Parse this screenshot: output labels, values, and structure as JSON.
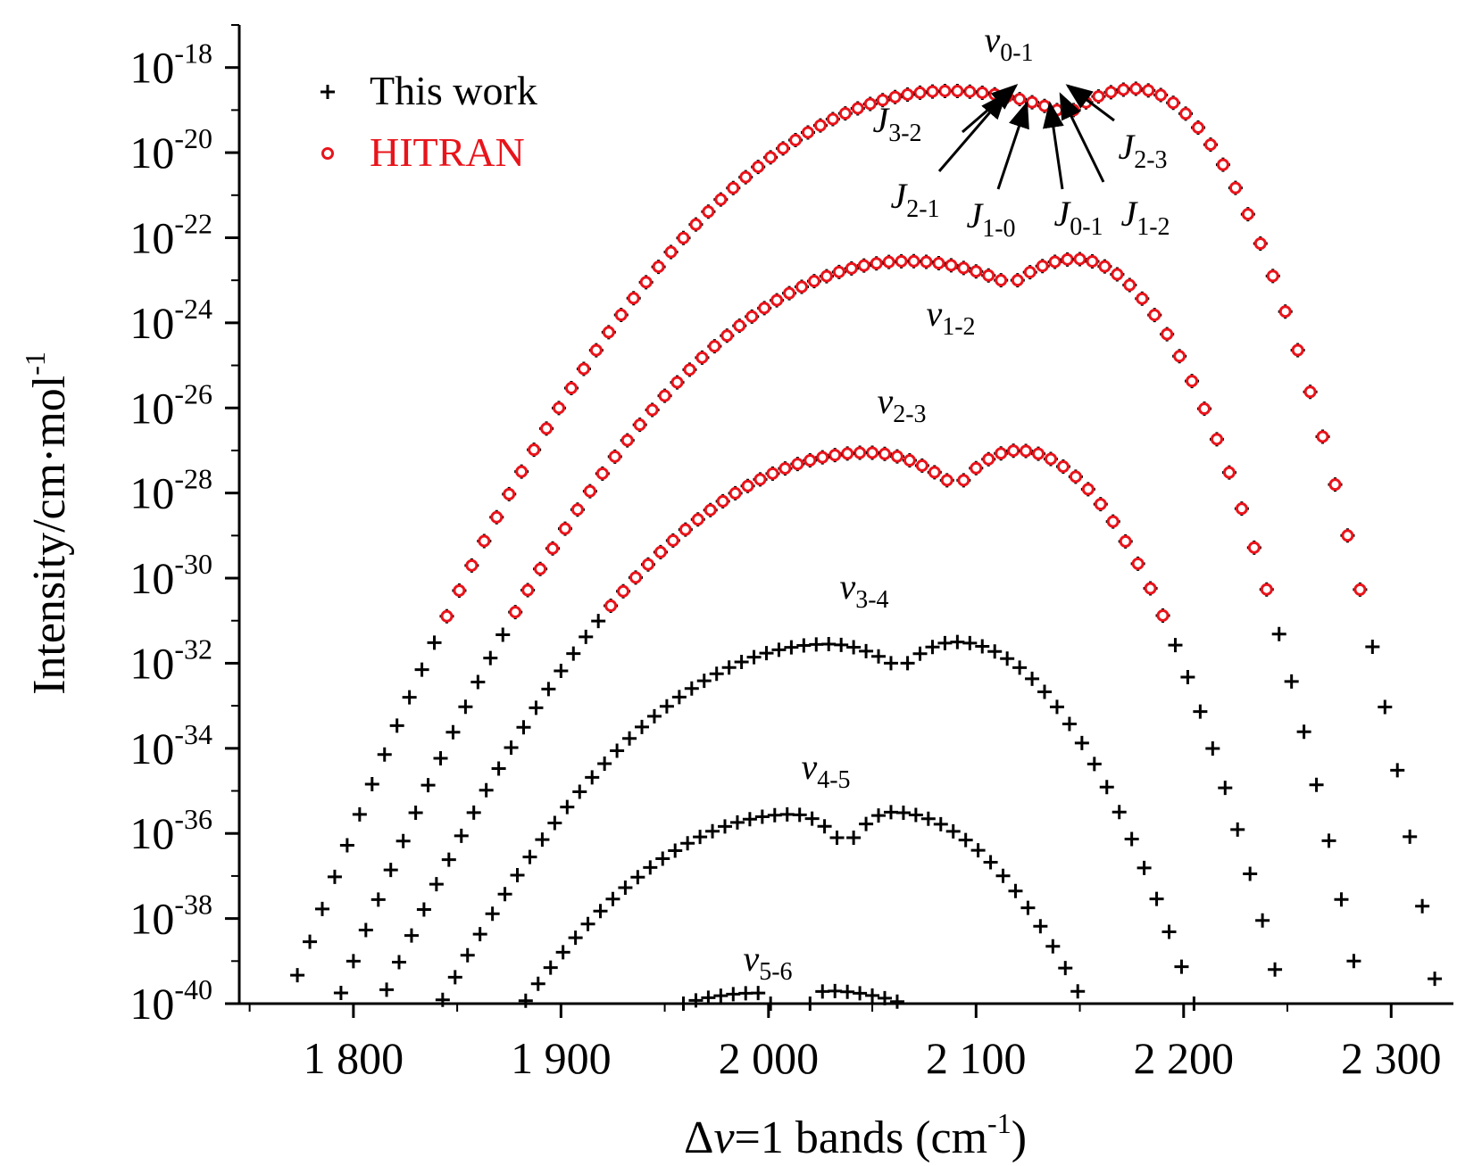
{
  "chart_data": {
    "type": "scatter",
    "xlabel": {
      "prefix": "Δ",
      "var": "v",
      "mid": "=1 bands (cm",
      "sup": "-1",
      "suffix": ")"
    },
    "ylabel": {
      "text": "Intensity/cm·mol",
      "sup": "-1"
    },
    "xlim": [
      1745,
      2330
    ],
    "ylim_exponent": [
      -40,
      -17
    ],
    "x_scale": "linear",
    "y_scale": "log",
    "x_ticks": [
      1800,
      1900,
      2000,
      2100,
      2200,
      2300
    ],
    "x_tick_labels": [
      "1 800",
      "1 900",
      "2 000",
      "2 100",
      "2 200",
      "2 300"
    ],
    "y_ticks": [
      -40,
      -38,
      -36,
      -34,
      -32,
      -30,
      -28,
      -26,
      -24,
      -22,
      -20,
      -18
    ],
    "y_tick_base": "10",
    "y_tick_exponents": [
      "-40",
      "-38",
      "-36",
      "-34",
      "-32",
      "-30",
      "-28",
      "-26",
      "-24",
      "-22",
      "-20",
      "-18"
    ],
    "legend": {
      "position": "top-left",
      "entries": [
        {
          "label": "This work",
          "marker": "+",
          "color": "#000000"
        },
        {
          "label": "HITRAN",
          "marker": "o",
          "color": "#e8141b"
        }
      ]
    },
    "colors": {
      "this_work": "#000000",
      "hitran": "#e8141b"
    },
    "bands": [
      {
        "label": "v",
        "sub": "0-1",
        "peak_log_intensity": -18.5,
        "hitran_min_log_intensity": -31.0,
        "R_branch": [
          2147,
          2323
        ],
        "P_branch": [
          2139,
          1768
        ],
        "gap_log_intensity": -19.0
      },
      {
        "label": "v",
        "sub": "1-2",
        "peak_log_intensity": -22.5,
        "hitran_min_log_intensity": -31.0,
        "R_branch": [
          2120,
          2286
        ],
        "P_branch": [
          2112,
          1792
        ],
        "gap_log_intensity": -23.0
      },
      {
        "label": "v",
        "sub": "2-3",
        "peak_log_intensity": -27.0,
        "hitran_min_log_intensity": -31.0,
        "R_branch": [
          2094,
          2248
        ],
        "P_branch": [
          2086,
          1813
        ],
        "gap_log_intensity": -27.7
      },
      {
        "label": "v",
        "sub": "3-4",
        "peak_log_intensity": -31.5,
        "hitran_min_log_intensity": null,
        "R_branch": [
          2067,
          2205
        ],
        "P_branch": [
          2059,
          1842
        ],
        "gap_log_intensity": -32.0
      },
      {
        "label": "v",
        "sub": "4-5",
        "peak_log_intensity": -35.5,
        "hitran_min_log_intensity": null,
        "R_branch": [
          2041,
          2152
        ],
        "P_branch": [
          2033,
          1882
        ],
        "gap_log_intensity": -36.1
      },
      {
        "label": "v",
        "sub": "5-6",
        "peak_log_intensity": -39.7,
        "hitran_min_log_intensity": null,
        "R_branch": [
          2020,
          2065
        ],
        "P_branch": [
          2001,
          1959
        ],
        "gap_log_intensity": -40.0
      }
    ],
    "annotations": [
      {
        "var": "J",
        "sub": "3-2"
      },
      {
        "var": "J",
        "sub": "2-1"
      },
      {
        "var": "J",
        "sub": "1-0"
      },
      {
        "var": "J",
        "sub": "0-1"
      },
      {
        "var": "J",
        "sub": "1-2"
      },
      {
        "var": "J",
        "sub": "2-3"
      }
    ]
  }
}
